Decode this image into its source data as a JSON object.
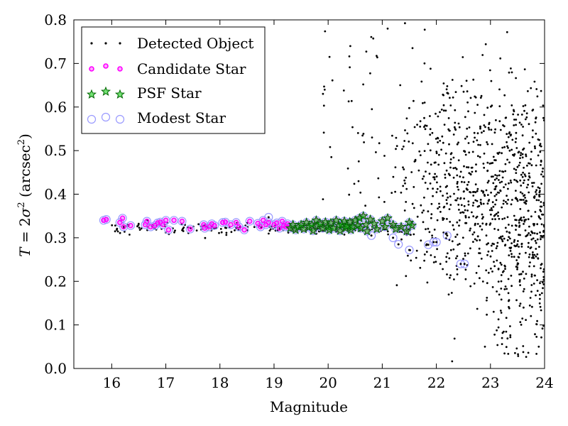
{
  "chart_data": {
    "type": "scatter",
    "xlabel": "Magnitude",
    "ylabel_parts": {
      "t": "T",
      "eq": " = 2",
      "sigma": "σ",
      "exp2": "2",
      "unit": " (arcsec",
      "unit_exp": "2",
      "close": ")"
    },
    "xlim": [
      15.3,
      24
    ],
    "ylim": [
      0.0,
      0.8
    ],
    "x_ticks": [
      "16",
      "17",
      "18",
      "19",
      "20",
      "21",
      "22",
      "23",
      "24"
    ],
    "y_ticks": [
      "0.0",
      "0.1",
      "0.2",
      "0.3",
      "0.4",
      "0.5",
      "0.6",
      "0.7",
      "0.8"
    ],
    "grid": false,
    "legend_position": "top-left",
    "legend": [
      {
        "name": "Detected Object",
        "key": "detected"
      },
      {
        "name": "Candidate Star",
        "key": "candidate"
      },
      {
        "name": "PSF Star",
        "key": "psf"
      },
      {
        "name": "Modest Star",
        "key": "modest"
      }
    ],
    "colors": {
      "detected": "#000000",
      "candidate_fill": "#ff00ff",
      "candidate_edge": "#ff00ff",
      "psf_fill": "#00cc00",
      "psf_edge": "#006600",
      "modest_edge": "#9999ff"
    },
    "series": {
      "candidate": [
        [
          15.85,
          0.34
        ],
        [
          15.9,
          0.342
        ],
        [
          16.15,
          0.335
        ],
        [
          16.2,
          0.345
        ],
        [
          16.22,
          0.325
        ],
        [
          16.35,
          0.328
        ],
        [
          16.62,
          0.33
        ],
        [
          16.65,
          0.338
        ],
        [
          16.72,
          0.325
        ],
        [
          16.8,
          0.328
        ],
        [
          16.85,
          0.334
        ],
        [
          16.9,
          0.336
        ],
        [
          16.95,
          0.33
        ],
        [
          17.0,
          0.34
        ],
        [
          17.05,
          0.318
        ],
        [
          17.15,
          0.34
        ],
        [
          17.3,
          0.338
        ],
        [
          17.45,
          0.32
        ],
        [
          17.7,
          0.33
        ],
        [
          17.72,
          0.322
        ],
        [
          17.8,
          0.325
        ],
        [
          17.85,
          0.332
        ],
        [
          17.9,
          0.328
        ],
        [
          18.05,
          0.335
        ],
        [
          18.1,
          0.336
        ],
        [
          18.2,
          0.33
        ],
        [
          18.3,
          0.335
        ],
        [
          18.35,
          0.325
        ],
        [
          18.45,
          0.318
        ],
        [
          18.55,
          0.338
        ],
        [
          18.7,
          0.333
        ],
        [
          18.75,
          0.325
        ],
        [
          18.8,
          0.34
        ],
        [
          18.85,
          0.33
        ],
        [
          18.9,
          0.335
        ],
        [
          19.0,
          0.33
        ],
        [
          19.05,
          0.334
        ],
        [
          19.1,
          0.322
        ],
        [
          19.15,
          0.338
        ],
        [
          19.18,
          0.328
        ],
        [
          19.22,
          0.325
        ],
        [
          19.25,
          0.332
        ]
      ],
      "psf": [
        [
          19.3,
          0.322
        ],
        [
          19.35,
          0.33
        ],
        [
          19.4,
          0.318
        ],
        [
          19.45,
          0.325
        ],
        [
          19.5,
          0.33
        ],
        [
          19.55,
          0.32
        ],
        [
          19.6,
          0.335
        ],
        [
          19.65,
          0.325
        ],
        [
          19.7,
          0.33
        ],
        [
          19.72,
          0.316
        ],
        [
          19.78,
          0.34
        ],
        [
          19.8,
          0.327
        ],
        [
          19.85,
          0.332
        ],
        [
          19.9,
          0.322
        ],
        [
          19.95,
          0.336
        ],
        [
          20.0,
          0.325
        ],
        [
          20.02,
          0.318
        ],
        [
          20.05,
          0.334
        ],
        [
          20.1,
          0.322
        ],
        [
          20.15,
          0.34
        ],
        [
          20.2,
          0.328
        ],
        [
          20.22,
          0.316
        ],
        [
          20.25,
          0.33
        ],
        [
          20.3,
          0.338
        ],
        [
          20.32,
          0.322
        ],
        [
          20.35,
          0.327
        ],
        [
          20.4,
          0.336
        ],
        [
          20.42,
          0.318
        ],
        [
          20.45,
          0.325
        ],
        [
          20.5,
          0.34
        ],
        [
          20.55,
          0.328
        ],
        [
          20.58,
          0.345
        ],
        [
          20.6,
          0.322
        ],
        [
          20.65,
          0.35
        ],
        [
          20.7,
          0.33
        ],
        [
          20.72,
          0.315
        ],
        [
          20.78,
          0.342
        ],
        [
          20.85,
          0.332
        ],
        [
          20.9,
          0.32
        ],
        [
          21.0,
          0.338
        ],
        [
          21.05,
          0.325
        ],
        [
          21.1,
          0.345
        ],
        [
          21.2,
          0.33
        ],
        [
          21.25,
          0.32
        ],
        [
          21.35,
          0.325
        ],
        [
          21.45,
          0.315
        ],
        [
          21.5,
          0.335
        ],
        [
          21.55,
          0.328
        ]
      ],
      "modest_extra": [
        [
          18.9,
          0.347
        ],
        [
          20.8,
          0.305
        ],
        [
          21.2,
          0.3
        ],
        [
          21.3,
          0.285
        ],
        [
          21.5,
          0.272
        ],
        [
          21.85,
          0.284
        ],
        [
          21.95,
          0.29
        ],
        [
          22.0,
          0.29
        ],
        [
          22.2,
          0.305
        ],
        [
          22.45,
          0.24
        ],
        [
          22.52,
          0.24
        ]
      ]
    }
  }
}
